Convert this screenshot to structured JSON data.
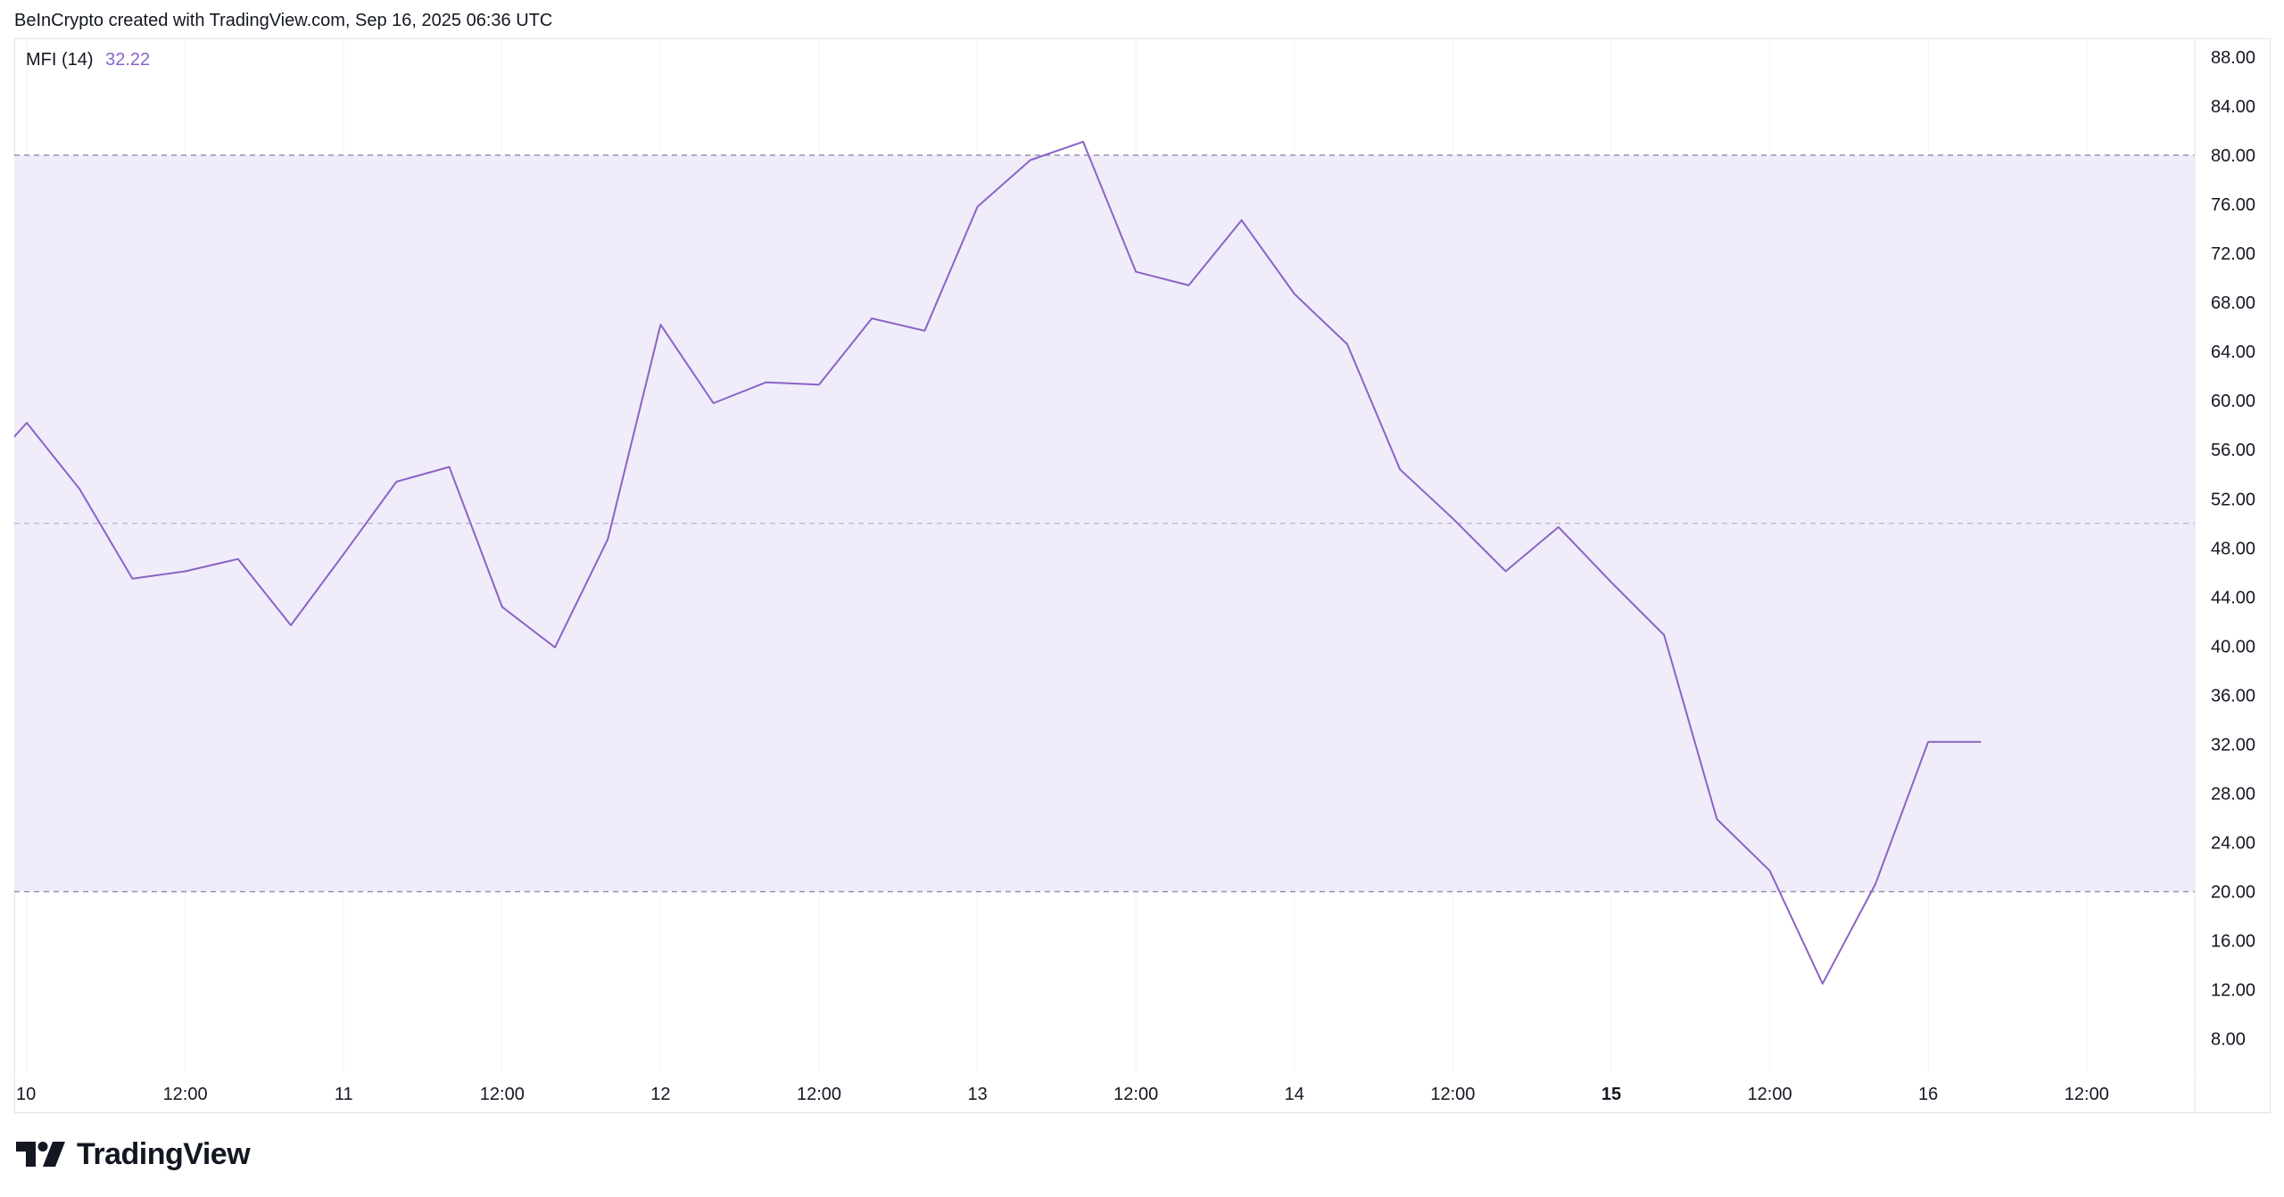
{
  "header": {
    "attribution": "BeInCrypto created with TradingView.com, Sep 16, 2025 06:36 UTC"
  },
  "indicator": {
    "name": "MFI (14)",
    "value": "32.22"
  },
  "branding": {
    "logo_text": "TradingView",
    "icon": "tradingview-logo-icon"
  },
  "colors": {
    "line": "#8b63c5",
    "band_fill": "#f0ecfa",
    "band_border": "#9a8fb0",
    "grid_mid": "#c3b8da"
  },
  "chart_data": {
    "type": "line",
    "title": "",
    "x_tick_labels": [
      "10",
      "12:00",
      "11",
      "12:00",
      "12",
      "12:00",
      "13",
      "12:00",
      "14",
      "12:00",
      "15",
      "12:00",
      "16",
      "12:00"
    ],
    "x_tick_bold": [
      false,
      false,
      false,
      false,
      false,
      false,
      false,
      false,
      false,
      false,
      true,
      false,
      false,
      false
    ],
    "y_tick_labels": [
      "88.00",
      "84.00",
      "80.00",
      "76.00",
      "72.00",
      "68.00",
      "64.00",
      "60.00",
      "56.00",
      "52.00",
      "48.00",
      "44.00",
      "40.00",
      "36.00",
      "32.00",
      "28.00",
      "24.00",
      "20.00",
      "16.00",
      "12.00",
      "8.00"
    ],
    "y_ticks": [
      88,
      84,
      80,
      76,
      72,
      68,
      64,
      60,
      56,
      52,
      48,
      44,
      40,
      36,
      32,
      28,
      24,
      20,
      16,
      12,
      8
    ],
    "ylim": [
      5.4,
      91.2
    ],
    "x_unit": "hours from Sep 10 00:00 UTC",
    "xlim": [
      0,
      166
    ],
    "x_ticks_hours": [
      0,
      12,
      24,
      36,
      48,
      60,
      72,
      84,
      96,
      108,
      120,
      132,
      144,
      156
    ],
    "bands": {
      "upper": 80,
      "middle": 50,
      "lower": 20
    },
    "series": [
      {
        "x": [
          -1,
          0,
          4,
          8,
          12,
          16,
          20,
          24,
          28,
          32,
          36,
          40,
          44,
          48,
          52,
          56,
          60,
          64,
          68,
          72,
          76,
          80,
          84,
          88,
          92,
          96,
          100,
          104,
          108,
          112,
          116,
          120,
          124,
          128,
          132,
          136,
          140,
          144,
          148
        ],
        "y": [
          57.0,
          58.2,
          52.8,
          45.5,
          46.1,
          47.1,
          41.7,
          47.5,
          53.4,
          54.6,
          43.2,
          39.9,
          48.7,
          66.2,
          59.8,
          61.5,
          61.3,
          66.7,
          65.7,
          75.8,
          79.6,
          81.1,
          70.5,
          69.4,
          74.7,
          68.7,
          64.6,
          54.4,
          50.4,
          46.1,
          49.7,
          45.2,
          40.9,
          25.9,
          21.7,
          12.5,
          20.6,
          32.2,
          32.2
        ]
      }
    ]
  }
}
